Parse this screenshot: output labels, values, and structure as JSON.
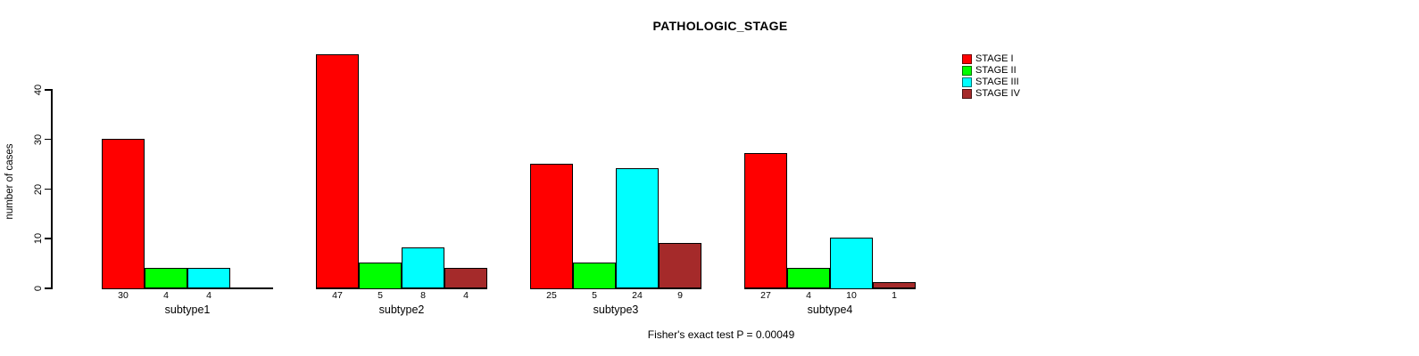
{
  "title": "PATHOLOGIC_STAGE",
  "ylabel": "number of cases",
  "caption": "Fisher's exact test P = 0.00049",
  "chart_data": {
    "type": "bar",
    "title": "PATHOLOGIC_STAGE",
    "ylabel": "number of cases",
    "xlabel": "",
    "categories": [
      "subtype1",
      "subtype2",
      "subtype3",
      "subtype4"
    ],
    "series": [
      {
        "name": "STAGE I",
        "color": "#ff0000",
        "values": [
          30,
          47,
          25,
          27
        ]
      },
      {
        "name": "STAGE II",
        "color": "#00ff00",
        "values": [
          4,
          5,
          5,
          4
        ]
      },
      {
        "name": "STAGE III",
        "color": "#00ffff",
        "values": [
          4,
          8,
          24,
          10
        ]
      },
      {
        "name": "STAGE IV",
        "color": "#a52a2a",
        "values": [
          0,
          4,
          9,
          1
        ]
      }
    ],
    "yticks": [
      0,
      10,
      20,
      30,
      40
    ],
    "ylim": [
      0,
      47
    ],
    "grid": false,
    "bar_value_labels_shown": true,
    "zero_values_unlabeled": true,
    "legend_position": "top-right",
    "annotation": "Fisher's exact test P = 0.00049"
  }
}
